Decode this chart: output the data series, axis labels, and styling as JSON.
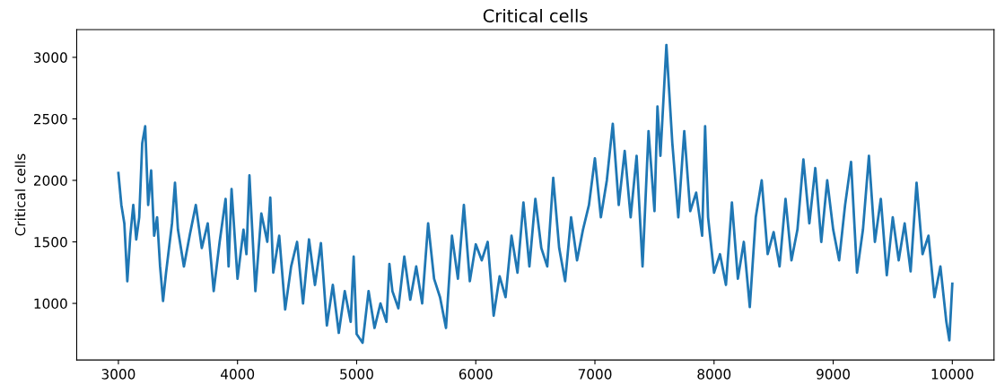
{
  "chart_data": {
    "type": "line",
    "title": "Critical cells",
    "ylabel": "Critical cells",
    "xlim": [
      2650,
      10350
    ],
    "ylim": [
      540,
      3225
    ],
    "xticks": [
      3000,
      4000,
      5000,
      6000,
      7000,
      8000,
      9000,
      10000
    ],
    "yticks": [
      1000,
      1500,
      2000,
      2500,
      3000
    ],
    "grid": false,
    "line_style": "solid",
    "marker": "none",
    "series": [
      {
        "color": "#1f77b4",
        "x": [
          3000,
          3025,
          3050,
          3075,
          3100,
          3125,
          3150,
          3175,
          3200,
          3225,
          3250,
          3275,
          3300,
          3325,
          3350,
          3375,
          3400,
          3450,
          3475,
          3500,
          3550,
          3600,
          3650,
          3700,
          3750,
          3800,
          3850,
          3900,
          3925,
          3950,
          4000,
          4050,
          4075,
          4100,
          4150,
          4200,
          4250,
          4275,
          4300,
          4350,
          4400,
          4450,
          4500,
          4550,
          4600,
          4650,
          4700,
          4750,
          4800,
          4850,
          4900,
          4950,
          4975,
          5000,
          5050,
          5100,
          5150,
          5200,
          5250,
          5275,
          5300,
          5350,
          5400,
          5450,
          5500,
          5550,
          5600,
          5650,
          5700,
          5750,
          5800,
          5850,
          5900,
          5950,
          6000,
          6050,
          6100,
          6150,
          6200,
          6250,
          6300,
          6350,
          6400,
          6450,
          6500,
          6550,
          6600,
          6650,
          6700,
          6750,
          6800,
          6850,
          6900,
          6950,
          7000,
          7050,
          7100,
          7150,
          7200,
          7250,
          7300,
          7350,
          7400,
          7450,
          7500,
          7525,
          7550,
          7600,
          7650,
          7700,
          7750,
          7800,
          7850,
          7900,
          7925,
          7950,
          8000,
          8050,
          8100,
          8150,
          8200,
          8250,
          8300,
          8350,
          8400,
          8450,
          8500,
          8550,
          8600,
          8650,
          8700,
          8750,
          8800,
          8850,
          8900,
          8950,
          9000,
          9050,
          9100,
          9150,
          9200,
          9250,
          9300,
          9350,
          9400,
          9450,
          9500,
          9550,
          9600,
          9650,
          9700,
          9750,
          9800,
          9850,
          9900,
          9950,
          9975,
          10000
        ],
        "values": [
          2060,
          1800,
          1650,
          1180,
          1550,
          1800,
          1520,
          1700,
          2300,
          2440,
          1800,
          2080,
          1550,
          1700,
          1300,
          1020,
          1250,
          1650,
          1980,
          1600,
          1300,
          1560,
          1800,
          1450,
          1650,
          1100,
          1500,
          1850,
          1300,
          1930,
          1200,
          1600,
          1400,
          2040,
          1100,
          1730,
          1500,
          1860,
          1250,
          1550,
          950,
          1300,
          1500,
          1000,
          1520,
          1150,
          1490,
          820,
          1150,
          760,
          1100,
          850,
          1380,
          750,
          680,
          1100,
          800,
          1000,
          850,
          1320,
          1100,
          960,
          1380,
          1030,
          1300,
          1000,
          1650,
          1200,
          1050,
          800,
          1550,
          1200,
          1800,
          1180,
          1480,
          1350,
          1500,
          900,
          1220,
          1050,
          1550,
          1250,
          1820,
          1300,
          1850,
          1450,
          1300,
          2020,
          1450,
          1180,
          1700,
          1350,
          1600,
          1800,
          2180,
          1700,
          2000,
          2460,
          1800,
          2240,
          1700,
          2200,
          1300,
          2400,
          1750,
          2600,
          2200,
          3100,
          2300,
          1700,
          2400,
          1750,
          1900,
          1550,
          2440,
          1700,
          1250,
          1400,
          1150,
          1820,
          1200,
          1500,
          970,
          1700,
          2000,
          1400,
          1580,
          1300,
          1850,
          1350,
          1600,
          2170,
          1650,
          2100,
          1500,
          2000,
          1600,
          1350,
          1800,
          2150,
          1250,
          1600,
          2200,
          1500,
          1850,
          1230,
          1700,
          1350,
          1650,
          1260,
          1980,
          1400,
          1550,
          1050,
          1300,
          850,
          700,
          1160
        ]
      }
    ]
  }
}
